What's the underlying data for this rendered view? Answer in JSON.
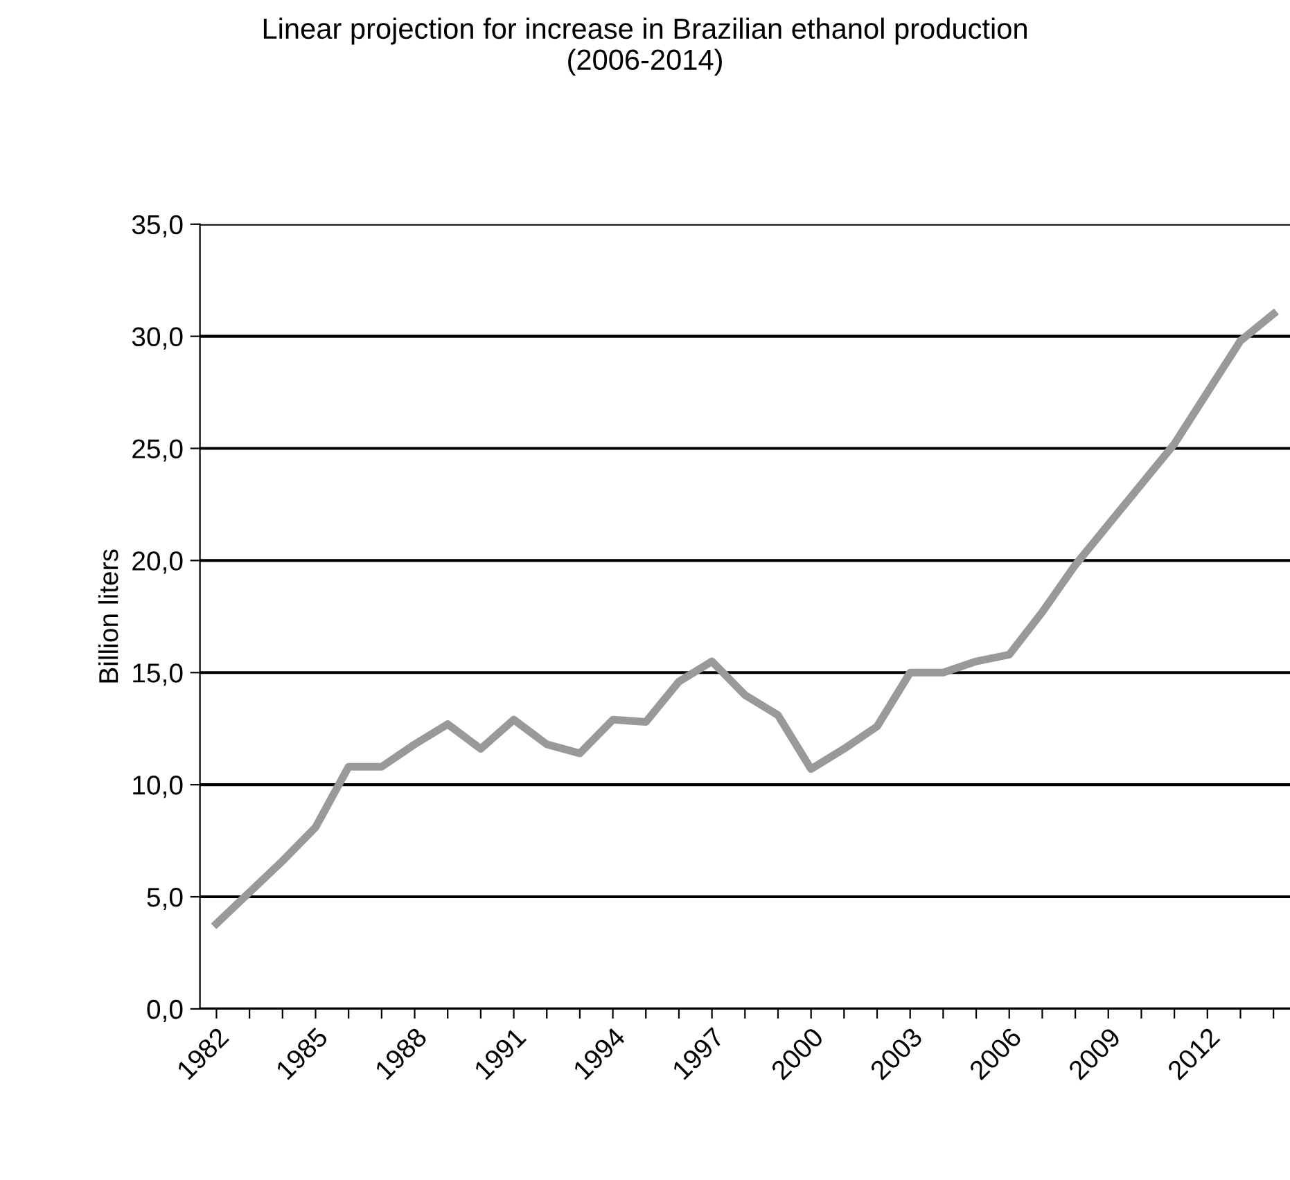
{
  "chart_data": {
    "type": "line",
    "title": "Linear projection for increase in Brazilian ethanol production\n(2006-2014)",
    "ylabel": "Billion liters",
    "categories": [
      "1982",
      null,
      null,
      "1985",
      null,
      null,
      "1988",
      null,
      null,
      "1991",
      null,
      null,
      "1994",
      null,
      null,
      "1997",
      null,
      null,
      "2000",
      null,
      null,
      "2003",
      null,
      null,
      "2006",
      null,
      null,
      "2009",
      null,
      null,
      "2012",
      null,
      null
    ],
    "series": [
      {
        "color": "#999999",
        "values": [
          3.8,
          5.2,
          6.6,
          8.1,
          10.8,
          10.8,
          11.8,
          12.7,
          11.6,
          12.9,
          11.8,
          11.4,
          12.9,
          12.8,
          14.6,
          15.5,
          14.0,
          13.1,
          10.7,
          11.6,
          12.6,
          15.0,
          15.0,
          15.5,
          15.8,
          17.7,
          19.8,
          21.6,
          23.4,
          25.2,
          27.5,
          29.8,
          31.0
        ]
      }
    ],
    "ylim": [
      0,
      35
    ],
    "yticks": [
      {
        "value": 0,
        "label": "0,0"
      },
      {
        "value": 5,
        "label": "5,0"
      },
      {
        "value": 10,
        "label": "10,0"
      },
      {
        "value": 15,
        "label": "15,0"
      },
      {
        "value": 20,
        "label": "20,0"
      },
      {
        "value": 25,
        "label": "25,0"
      },
      {
        "value": 30,
        "label": "30,0"
      },
      {
        "value": 35,
        "label": "35,0"
      }
    ],
    "grid": "y",
    "marker": "none",
    "line_style": "solid",
    "legend": false
  }
}
